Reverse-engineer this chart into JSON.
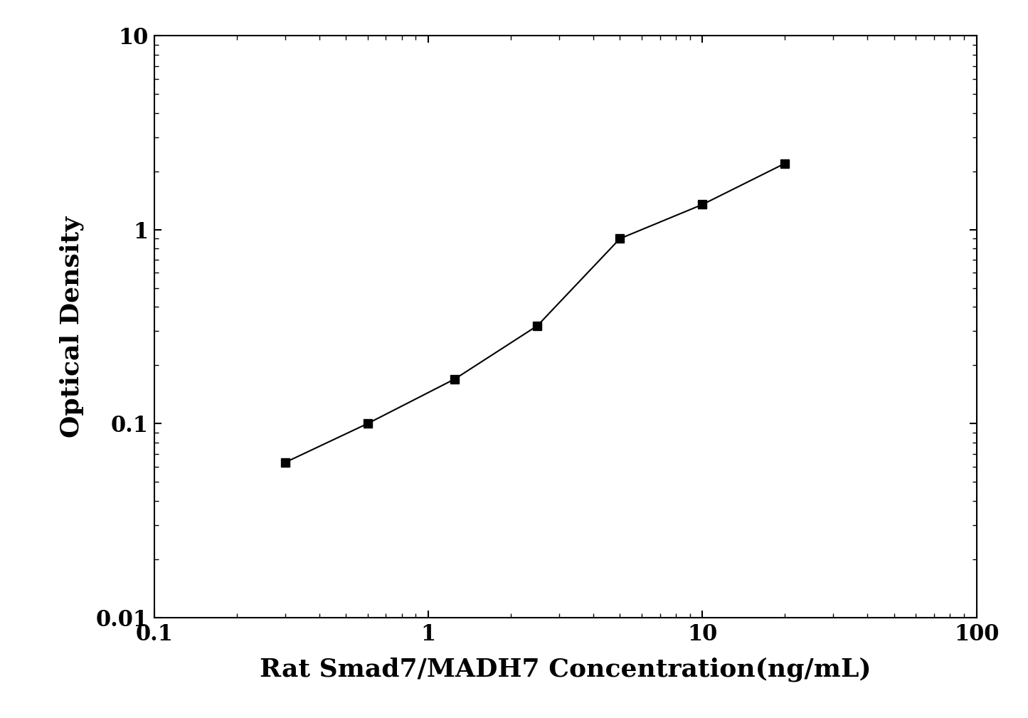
{
  "x_values": [
    0.3,
    0.6,
    1.25,
    2.5,
    5,
    10,
    20
  ],
  "y_values": [
    0.063,
    0.1,
    0.17,
    0.32,
    0.9,
    1.35,
    2.2
  ],
  "xlabel": "Rat Smad7/MADH7 Concentration(ng/mL)",
  "ylabel": "Optical Density",
  "xlim": [
    0.1,
    100
  ],
  "ylim": [
    0.01,
    10
  ],
  "line_color": "#000000",
  "marker": "s",
  "marker_color": "#000000",
  "marker_size": 9,
  "line_width": 1.5,
  "xlabel_fontsize": 26,
  "ylabel_fontsize": 26,
  "tick_fontsize": 22,
  "background_color": "#ffffff",
  "figure_width": 14.45,
  "figure_height": 10.09
}
